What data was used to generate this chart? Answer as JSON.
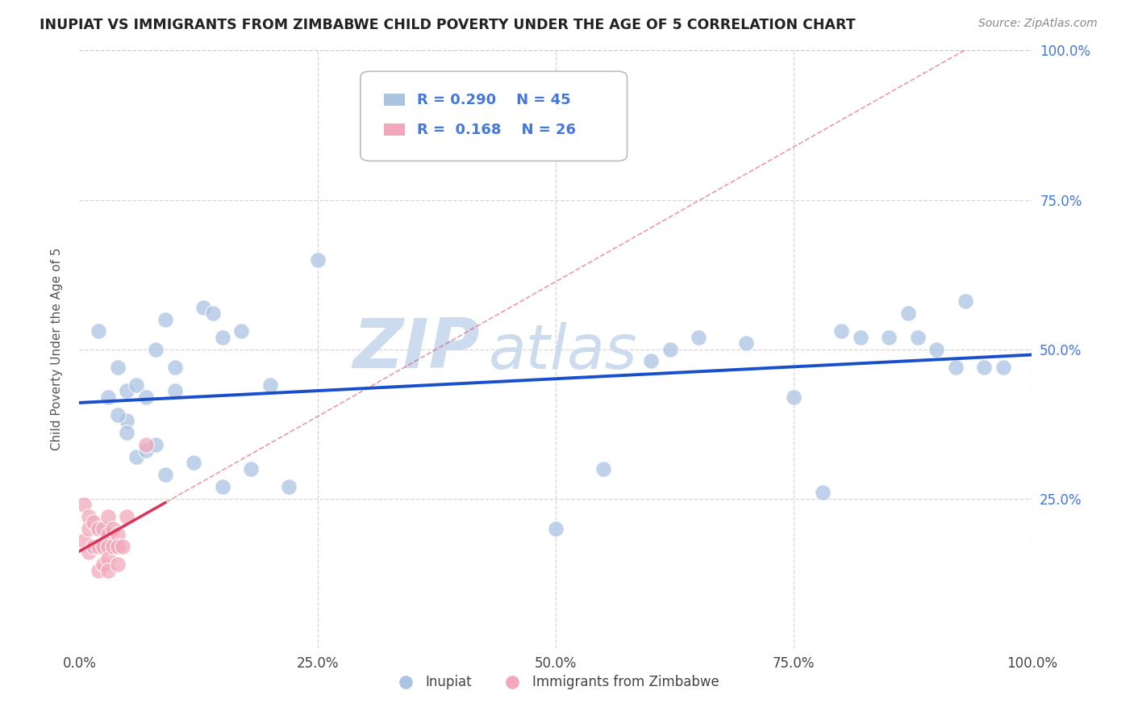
{
  "title": "INUPIAT VS IMMIGRANTS FROM ZIMBABWE CHILD POVERTY UNDER THE AGE OF 5 CORRELATION CHART",
  "source": "Source: ZipAtlas.com",
  "ylabel": "Child Poverty Under the Age of 5",
  "xlim": [
    0.0,
    1.0
  ],
  "ylim": [
    0.0,
    1.0
  ],
  "xtick_labels": [
    "0.0%",
    "25.0%",
    "50.0%",
    "75.0%",
    "100.0%"
  ],
  "xtick_vals": [
    0.0,
    0.25,
    0.5,
    0.75,
    1.0
  ],
  "ytick_labels": [
    "25.0%",
    "50.0%",
    "75.0%",
    "100.0%"
  ],
  "ytick_vals": [
    0.25,
    0.5,
    0.75,
    1.0
  ],
  "inupiat_R": 0.29,
  "inupiat_N": 45,
  "zimbabwe_R": 0.168,
  "zimbabwe_N": 26,
  "inupiat_color": "#aac4e2",
  "zimbabwe_color": "#f2a8bc",
  "inupiat_line_color": "#1a4fcc",
  "zimbabwe_line_color": "#dd3355",
  "watermark_zip": "ZIP",
  "watermark_atlas": "atlas",
  "watermark_color": "#ccdcee",
  "legend_text_color": "#4477dd",
  "title_color": "#222222",
  "source_color": "#888888",
  "ylabel_color": "#555555",
  "background_color": "#ffffff",
  "grid_color": "#cccccc",
  "tick_color": "#444444",
  "inupiat_x": [
    0.02,
    0.04,
    0.05,
    0.05,
    0.06,
    0.07,
    0.08,
    0.09,
    0.1,
    0.1,
    0.13,
    0.14,
    0.15,
    0.17,
    0.2,
    0.25,
    0.5,
    0.55,
    0.6,
    0.62,
    0.65,
    0.7,
    0.75,
    0.78,
    0.8,
    0.82,
    0.85,
    0.87,
    0.88,
    0.9,
    0.92,
    0.93,
    0.95,
    0.97,
    0.03,
    0.04,
    0.05,
    0.06,
    0.07,
    0.08,
    0.09,
    0.12,
    0.15,
    0.18,
    0.22
  ],
  "inupiat_y": [
    0.53,
    0.47,
    0.43,
    0.38,
    0.44,
    0.42,
    0.5,
    0.55,
    0.47,
    0.43,
    0.57,
    0.56,
    0.52,
    0.53,
    0.44,
    0.65,
    0.2,
    0.3,
    0.48,
    0.5,
    0.52,
    0.51,
    0.42,
    0.26,
    0.53,
    0.52,
    0.52,
    0.56,
    0.52,
    0.5,
    0.47,
    0.58,
    0.47,
    0.47,
    0.42,
    0.39,
    0.36,
    0.32,
    0.33,
    0.34,
    0.29,
    0.31,
    0.27,
    0.3,
    0.27
  ],
  "zimbabwe_x": [
    0.005,
    0.005,
    0.01,
    0.01,
    0.01,
    0.015,
    0.015,
    0.02,
    0.02,
    0.02,
    0.025,
    0.025,
    0.025,
    0.03,
    0.03,
    0.03,
    0.03,
    0.03,
    0.035,
    0.035,
    0.04,
    0.04,
    0.04,
    0.045,
    0.05,
    0.07
  ],
  "zimbabwe_y": [
    0.24,
    0.18,
    0.22,
    0.2,
    0.16,
    0.21,
    0.17,
    0.2,
    0.17,
    0.13,
    0.2,
    0.17,
    0.14,
    0.22,
    0.19,
    0.17,
    0.15,
    0.13,
    0.2,
    0.17,
    0.19,
    0.17,
    0.14,
    0.17,
    0.22,
    0.34
  ]
}
